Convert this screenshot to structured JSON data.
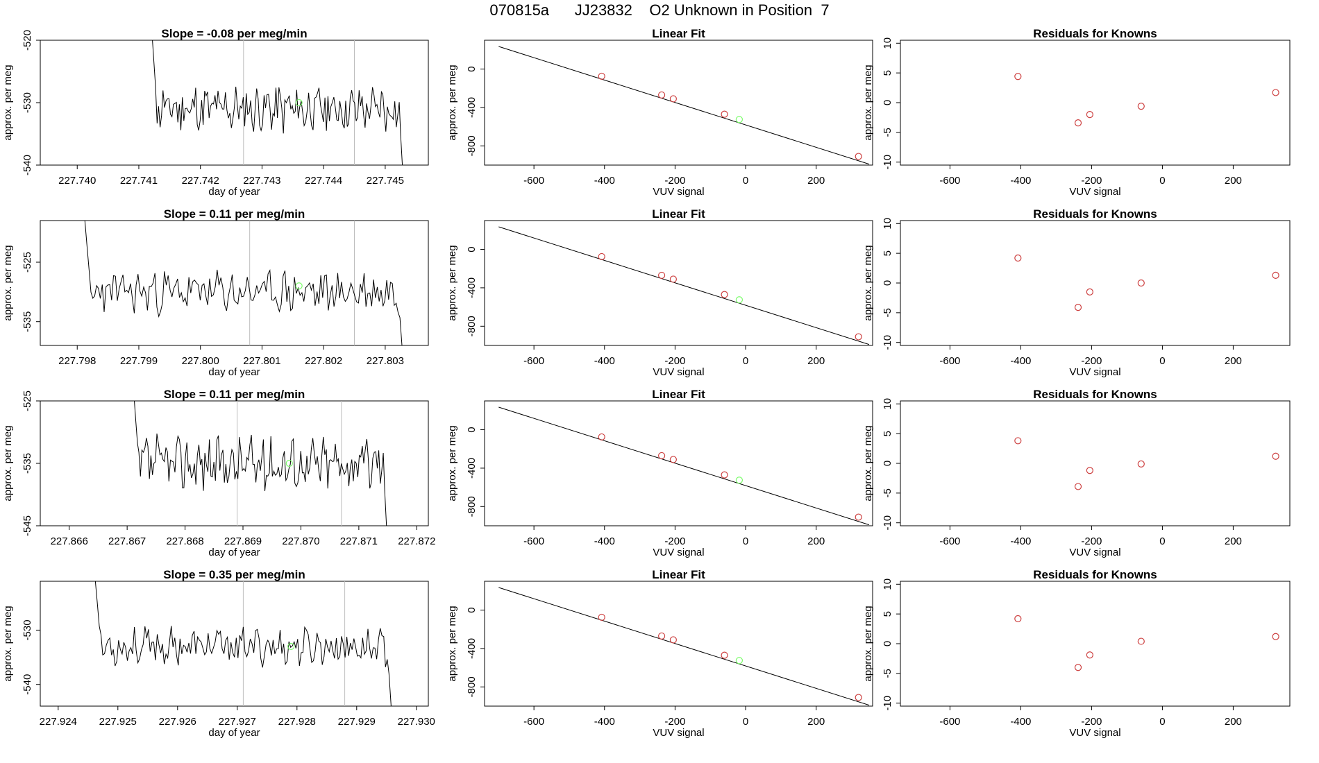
{
  "page_title": "070815a      JJ23832    O2 Unknown in Position  7",
  "chart_data": [
    {
      "type": "line",
      "title": "Slope =  -0.08  per meg/min",
      "xlabel": "day of year",
      "ylabel": "approx. per meg",
      "xlim": [
        227.7394,
        227.7457
      ],
      "ylim": [
        -540,
        -520
      ],
      "xticks": [
        "227.740",
        "227.741",
        "227.742",
        "227.743",
        "227.744",
        "227.745"
      ],
      "xtick_values": [
        227.74,
        227.741,
        227.742,
        227.743,
        227.744,
        227.745
      ],
      "yticks": [
        "-540",
        "-530",
        "-520"
      ],
      "ytick_values": [
        -540,
        -530,
        -520
      ],
      "vlines": [
        227.7427,
        227.7445
      ],
      "marker": {
        "x": 227.7436,
        "y": -530
      },
      "series": {
        "x_start": 227.7412,
        "x_end": 227.7453,
        "baseline": -531,
        "amplitude": 3.2,
        "seed": 11
      }
    },
    {
      "type": "scatter",
      "title": "Linear Fit",
      "xlabel": "VUV signal",
      "ylabel": "approx. per meg",
      "xlim": [
        -740,
        360
      ],
      "ylim": [
        -1000,
        300
      ],
      "xticks": [
        "-600",
        "-400",
        "-200",
        "0",
        "200"
      ],
      "xtick_values": [
        -600,
        -400,
        -200,
        0,
        200
      ],
      "yticks": [
        "-800",
        "-400",
        "0"
      ],
      "ytick_values": [
        -800,
        -400,
        0
      ],
      "line": {
        "x": [
          -700,
          350
        ],
        "y": [
          235,
          -990
        ]
      },
      "points": {
        "x": [
          -408,
          -238,
          -205,
          -60,
          320
        ],
        "y": [
          -75,
          -270,
          -310,
          -470,
          -910
        ]
      },
      "unknown": {
        "x": -18,
        "y": -525
      }
    },
    {
      "type": "scatter",
      "title": "Residuals for Knowns",
      "xlabel": "VUV signal",
      "ylabel": "approx. per meg",
      "xlim": [
        -740,
        360
      ],
      "ylim": [
        -10.5,
        10.5
      ],
      "xticks": [
        "-600",
        "-400",
        "-200",
        "0",
        "200"
      ],
      "xtick_values": [
        -600,
        -400,
        -200,
        0,
        200
      ],
      "yticks": [
        "-10",
        "-5",
        "0",
        "5",
        "10"
      ],
      "ytick_values": [
        -10,
        -5,
        0,
        5,
        10
      ],
      "points": {
        "x": [
          -408,
          -238,
          -205,
          -60,
          320
        ],
        "y": [
          4.4,
          -3.4,
          -2.0,
          -0.6,
          1.7
        ]
      }
    },
    {
      "type": "line",
      "title": "Slope =  0.11  per meg/min",
      "xlabel": "day of year",
      "ylabel": "approx. per meg",
      "xlim": [
        227.7974,
        227.8037
      ],
      "ylim": [
        -539,
        -518
      ],
      "xticks": [
        "227.798",
        "227.799",
        "227.800",
        "227.801",
        "227.802",
        "227.803"
      ],
      "xtick_values": [
        227.798,
        227.799,
        227.8,
        227.801,
        227.802,
        227.803
      ],
      "yticks": [
        "-535",
        "-525"
      ],
      "ytick_values": [
        -535,
        -525
      ],
      "vlines": [
        227.8008,
        227.8025
      ],
      "marker": {
        "x": 227.8016,
        "y": -529
      },
      "series": {
        "x_start": 227.7981,
        "x_end": 227.8033,
        "baseline": -530,
        "amplitude": 3.0,
        "seed": 23
      }
    },
    {
      "type": "scatter",
      "title": "Linear Fit",
      "xlabel": "VUV signal",
      "ylabel": "approx. per meg",
      "xlim": [
        -740,
        360
      ],
      "ylim": [
        -1000,
        300
      ],
      "xticks": [
        "-600",
        "-400",
        "-200",
        "0",
        "200"
      ],
      "xtick_values": [
        -600,
        -400,
        -200,
        0,
        200
      ],
      "yticks": [
        "-800",
        "-400",
        "0"
      ],
      "ytick_values": [
        -800,
        -400,
        0
      ],
      "line": {
        "x": [
          -700,
          350
        ],
        "y": [
          235,
          -990
        ]
      },
      "points": {
        "x": [
          -408,
          -238,
          -205,
          -60,
          320
        ],
        "y": [
          -75,
          -270,
          -310,
          -470,
          -910
        ]
      },
      "unknown": {
        "x": -18,
        "y": -525
      }
    },
    {
      "type": "scatter",
      "title": "Residuals for Knowns",
      "xlabel": "VUV signal",
      "ylabel": "approx. per meg",
      "xlim": [
        -740,
        360
      ],
      "ylim": [
        -10.5,
        10.5
      ],
      "xticks": [
        "-600",
        "-400",
        "-200",
        "0",
        "200"
      ],
      "xtick_values": [
        -600,
        -400,
        -200,
        0,
        200
      ],
      "yticks": [
        "-10",
        "-5",
        "0",
        "5",
        "10"
      ],
      "ytick_values": [
        -10,
        -5,
        0,
        5,
        10
      ],
      "points": {
        "x": [
          -408,
          -238,
          -205,
          -60,
          320
        ],
        "y": [
          4.2,
          -4.1,
          -1.5,
          0.0,
          1.3
        ]
      }
    },
    {
      "type": "line",
      "title": "Slope =  0.11  per meg/min",
      "xlabel": "day of year",
      "ylabel": "approx. per meg",
      "xlim": [
        227.8655,
        227.8722
      ],
      "ylim": [
        -545,
        -525
      ],
      "xticks": [
        "227.866",
        "227.867",
        "227.868",
        "227.869",
        "227.870",
        "227.871",
        "227.872"
      ],
      "xtick_values": [
        227.866,
        227.867,
        227.868,
        227.869,
        227.87,
        227.871,
        227.872
      ],
      "yticks": [
        "-545",
        "-535",
        "-525"
      ],
      "ytick_values": [
        -545,
        -535,
        -525
      ],
      "vlines": [
        227.8689,
        227.8707
      ],
      "marker": {
        "x": 227.8698,
        "y": -535
      },
      "series": {
        "x_start": 227.8671,
        "x_end": 227.8715,
        "baseline": -535,
        "amplitude": 3.6,
        "seed": 37
      }
    },
    {
      "type": "scatter",
      "title": "Linear Fit",
      "xlabel": "VUV signal",
      "ylabel": "approx. per meg",
      "xlim": [
        -740,
        360
      ],
      "ylim": [
        -1000,
        300
      ],
      "xticks": [
        "-600",
        "-400",
        "-200",
        "0",
        "200"
      ],
      "xtick_values": [
        -600,
        -400,
        -200,
        0,
        200
      ],
      "yticks": [
        "-800",
        "-400",
        "0"
      ],
      "ytick_values": [
        -800,
        -400,
        0
      ],
      "line": {
        "x": [
          -700,
          350
        ],
        "y": [
          235,
          -990
        ]
      },
      "points": {
        "x": [
          -408,
          -238,
          -205,
          -60,
          320
        ],
        "y": [
          -75,
          -270,
          -310,
          -470,
          -910
        ]
      },
      "unknown": {
        "x": -18,
        "y": -525
      }
    },
    {
      "type": "scatter",
      "title": "Residuals for Knowns",
      "xlabel": "VUV signal",
      "ylabel": "approx. per meg",
      "xlim": [
        -740,
        360
      ],
      "ylim": [
        -10.5,
        10.5
      ],
      "xticks": [
        "-600",
        "-400",
        "-200",
        "0",
        "200"
      ],
      "xtick_values": [
        -600,
        -400,
        -200,
        0,
        200
      ],
      "yticks": [
        "-10",
        "-5",
        "0",
        "5",
        "10"
      ],
      "ytick_values": [
        -10,
        -5,
        0,
        5,
        10
      ],
      "points": {
        "x": [
          -408,
          -238,
          -205,
          -60,
          320
        ],
        "y": [
          3.8,
          -3.9,
          -1.2,
          -0.1,
          1.2
        ]
      }
    },
    {
      "type": "line",
      "title": "Slope =  0.35  per meg/min",
      "xlabel": "day of year",
      "ylabel": "approx. per meg",
      "xlim": [
        227.9237,
        227.9302
      ],
      "ylim": [
        -544,
        -521
      ],
      "xticks": [
        "227.924",
        "227.925",
        "227.926",
        "227.927",
        "227.928",
        "227.929",
        "227.930"
      ],
      "xtick_values": [
        227.924,
        227.925,
        227.926,
        227.927,
        227.928,
        227.929,
        227.93
      ],
      "yticks": [
        "-540",
        "-530"
      ],
      "ytick_values": [
        -540,
        -530
      ],
      "vlines": [
        227.9271,
        227.9288
      ],
      "marker": {
        "x": 227.9279,
        "y": -533
      },
      "series": {
        "x_start": 227.9246,
        "x_end": 227.9296,
        "baseline": -533,
        "amplitude": 2.8,
        "seed": 53
      }
    },
    {
      "type": "scatter",
      "title": "Linear Fit",
      "xlabel": "VUV signal",
      "ylabel": "approx. per meg",
      "xlim": [
        -740,
        360
      ],
      "ylim": [
        -1000,
        300
      ],
      "xticks": [
        "-600",
        "-400",
        "-200",
        "0",
        "200"
      ],
      "xtick_values": [
        -600,
        -400,
        -200,
        0,
        200
      ],
      "yticks": [
        "-800",
        "-400",
        "0"
      ],
      "ytick_values": [
        -800,
        -400,
        0
      ],
      "line": {
        "x": [
          -700,
          350
        ],
        "y": [
          235,
          -990
        ]
      },
      "points": {
        "x": [
          -408,
          -238,
          -205,
          -60,
          320
        ],
        "y": [
          -75,
          -270,
          -310,
          -470,
          -910
        ]
      },
      "unknown": {
        "x": -18,
        "y": -525
      }
    },
    {
      "type": "scatter",
      "title": "Residuals for Knowns",
      "xlabel": "VUV signal",
      "ylabel": "approx. per meg",
      "xlim": [
        -740,
        360
      ],
      "ylim": [
        -10.5,
        10.5
      ],
      "xticks": [
        "-600",
        "-400",
        "-200",
        "0",
        "200"
      ],
      "xtick_values": [
        -600,
        -400,
        -200,
        0,
        200
      ],
      "yticks": [
        "-10",
        "-5",
        "0",
        "5",
        "10"
      ],
      "ytick_values": [
        -10,
        -5,
        0,
        5,
        10
      ],
      "points": {
        "x": [
          -408,
          -238,
          -205,
          -60,
          320
        ],
        "y": [
          4.2,
          -4.0,
          -1.9,
          0.4,
          1.2
        ]
      }
    }
  ]
}
